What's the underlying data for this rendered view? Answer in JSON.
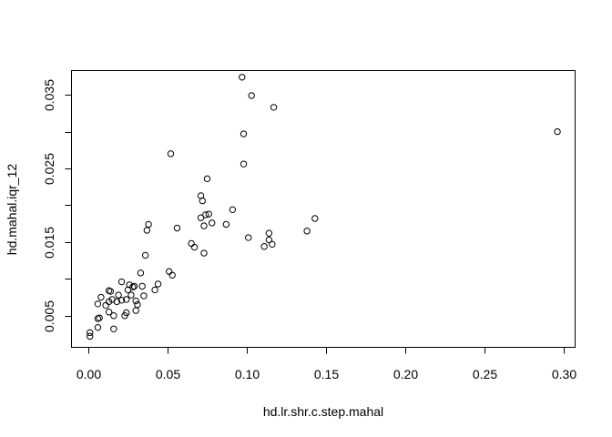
{
  "chart_data": {
    "type": "scatter",
    "title": "",
    "xlabel": "hd.lr.shr.c.step.mahal",
    "ylabel": "hd.mahal.iqr_12",
    "xlim": [
      0,
      0.3
    ],
    "ylim": [
      0.002,
      0.037
    ],
    "grid": false,
    "x_ticks": [
      0.0,
      0.05,
      0.1,
      0.15,
      0.2,
      0.25,
      0.3
    ],
    "x_tick_labels": [
      "0.00",
      "0.05",
      "0.10",
      "0.15",
      "0.20",
      "0.25",
      "0.30"
    ],
    "y_ticks": [
      0.005,
      0.01,
      0.015,
      0.02,
      0.025,
      0.03,
      0.035
    ],
    "y_tick_labels": [
      "0.005",
      "",
      "0.015",
      "",
      "0.025",
      "",
      "0.035"
    ],
    "points": [
      [
        0.001,
        0.0022
      ],
      [
        0.001,
        0.0027
      ],
      [
        0.006,
        0.0034
      ],
      [
        0.006,
        0.0046
      ],
      [
        0.007,
        0.0047
      ],
      [
        0.006,
        0.0066
      ],
      [
        0.008,
        0.0075
      ],
      [
        0.011,
        0.0064
      ],
      [
        0.013,
        0.0055
      ],
      [
        0.013,
        0.0069
      ],
      [
        0.014,
        0.0083
      ],
      [
        0.013,
        0.0084
      ],
      [
        0.015,
        0.0072
      ],
      [
        0.016,
        0.005
      ],
      [
        0.016,
        0.0032
      ],
      [
        0.018,
        0.0069
      ],
      [
        0.019,
        0.0078
      ],
      [
        0.021,
        0.0096
      ],
      [
        0.021,
        0.0071
      ],
      [
        0.023,
        0.005
      ],
      [
        0.024,
        0.0054
      ],
      [
        0.024,
        0.0072
      ],
      [
        0.025,
        0.0085
      ],
      [
        0.026,
        0.0092
      ],
      [
        0.027,
        0.0078
      ],
      [
        0.028,
        0.0089
      ],
      [
        0.029,
        0.009
      ],
      [
        0.03,
        0.007
      ],
      [
        0.03,
        0.0057
      ],
      [
        0.031,
        0.0065
      ],
      [
        0.033,
        0.0108
      ],
      [
        0.034,
        0.009
      ],
      [
        0.035,
        0.0077
      ],
      [
        0.036,
        0.0132
      ],
      [
        0.037,
        0.0166
      ],
      [
        0.038,
        0.0174
      ],
      [
        0.042,
        0.0085
      ],
      [
        0.044,
        0.0093
      ],
      [
        0.051,
        0.011
      ],
      [
        0.052,
        0.027
      ],
      [
        0.053,
        0.0105
      ],
      [
        0.056,
        0.0169
      ],
      [
        0.065,
        0.0148
      ],
      [
        0.067,
        0.0143
      ],
      [
        0.071,
        0.0213
      ],
      [
        0.071,
        0.0183
      ],
      [
        0.072,
        0.0206
      ],
      [
        0.073,
        0.0172
      ],
      [
        0.073,
        0.0135
      ],
      [
        0.074,
        0.0187
      ],
      [
        0.075,
        0.0236
      ],
      [
        0.076,
        0.0188
      ],
      [
        0.078,
        0.0176
      ],
      [
        0.087,
        0.0174
      ],
      [
        0.091,
        0.0194
      ],
      [
        0.097,
        0.0374
      ],
      [
        0.098,
        0.0297
      ],
      [
        0.098,
        0.0256
      ],
      [
        0.101,
        0.0156
      ],
      [
        0.103,
        0.0349
      ],
      [
        0.111,
        0.0144
      ],
      [
        0.114,
        0.0153
      ],
      [
        0.114,
        0.0162
      ],
      [
        0.116,
        0.0147
      ],
      [
        0.117,
        0.0333
      ],
      [
        0.138,
        0.0165
      ],
      [
        0.143,
        0.0182
      ],
      [
        0.296,
        0.03
      ]
    ]
  }
}
